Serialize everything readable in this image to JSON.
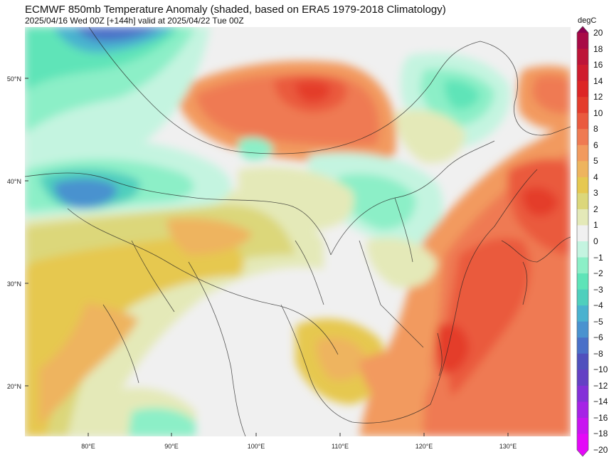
{
  "title": "ECMWF 850mb Temperature Anomaly (shaded, based on ERA5 1979-2018 Climatology)",
  "subtitle": "2025/04/16 Wed 00Z [+144h] valid at 2025/04/22 Tue 00Z",
  "map": {
    "lon_range": [
      72,
      138
    ],
    "lat_range": [
      15,
      55
    ],
    "lat_ticks": [
      {
        "value": 50,
        "label": "50°N"
      },
      {
        "value": 40,
        "label": "40°N"
      },
      {
        "value": 30,
        "label": "30°N"
      },
      {
        "value": 20,
        "label": "20°N"
      }
    ],
    "lon_ticks": [
      {
        "value": 80,
        "label": "80°E"
      },
      {
        "value": 90,
        "label": "90°E"
      },
      {
        "value": 100,
        "label": "100°E"
      },
      {
        "value": 110,
        "label": "110°E"
      },
      {
        "value": 120,
        "label": "120°E"
      },
      {
        "value": 130,
        "label": "130°E"
      }
    ]
  },
  "colorbar": {
    "unit": "degC",
    "levels": [
      {
        "label": "20",
        "color": "#8c0050"
      },
      {
        "label": "18",
        "color": "#a80a46"
      },
      {
        "label": "16",
        "color": "#bd1438"
      },
      {
        "label": "14",
        "color": "#cf1c2e"
      },
      {
        "label": "12",
        "color": "#dd2626"
      },
      {
        "label": "10",
        "color": "#e43c2c"
      },
      {
        "label": "8",
        "color": "#ea5a3e"
      },
      {
        "label": "6",
        "color": "#ef7a52"
      },
      {
        "label": "5",
        "color": "#f29a5e"
      },
      {
        "label": "4",
        "color": "#eeb45e"
      },
      {
        "label": "3",
        "color": "#e6c850"
      },
      {
        "label": "2",
        "color": "#dcd77a"
      },
      {
        "label": "1",
        "color": "#e4e9b8"
      },
      {
        "label": "0",
        "color": "#f0f0f0"
      },
      {
        "label": "−1",
        "color": "#c4f4e0"
      },
      {
        "label": "−2",
        "color": "#8cefc7"
      },
      {
        "label": "−3",
        "color": "#5ee4b8"
      },
      {
        "label": "−4",
        "color": "#4fcfbd"
      },
      {
        "label": "−5",
        "color": "#4ab2cf"
      },
      {
        "label": "−6",
        "color": "#4a92cf"
      },
      {
        "label": "−8",
        "color": "#4a70c8"
      },
      {
        "label": "−10",
        "color": "#5050bd"
      },
      {
        "label": "−12",
        "color": "#6440c4"
      },
      {
        "label": "−14",
        "color": "#8430d8"
      },
      {
        "label": "−16",
        "color": "#a622e6"
      },
      {
        "label": "−18",
        "color": "#c814f0"
      },
      {
        "label": "−20",
        "color": "#e408f8"
      }
    ]
  }
}
